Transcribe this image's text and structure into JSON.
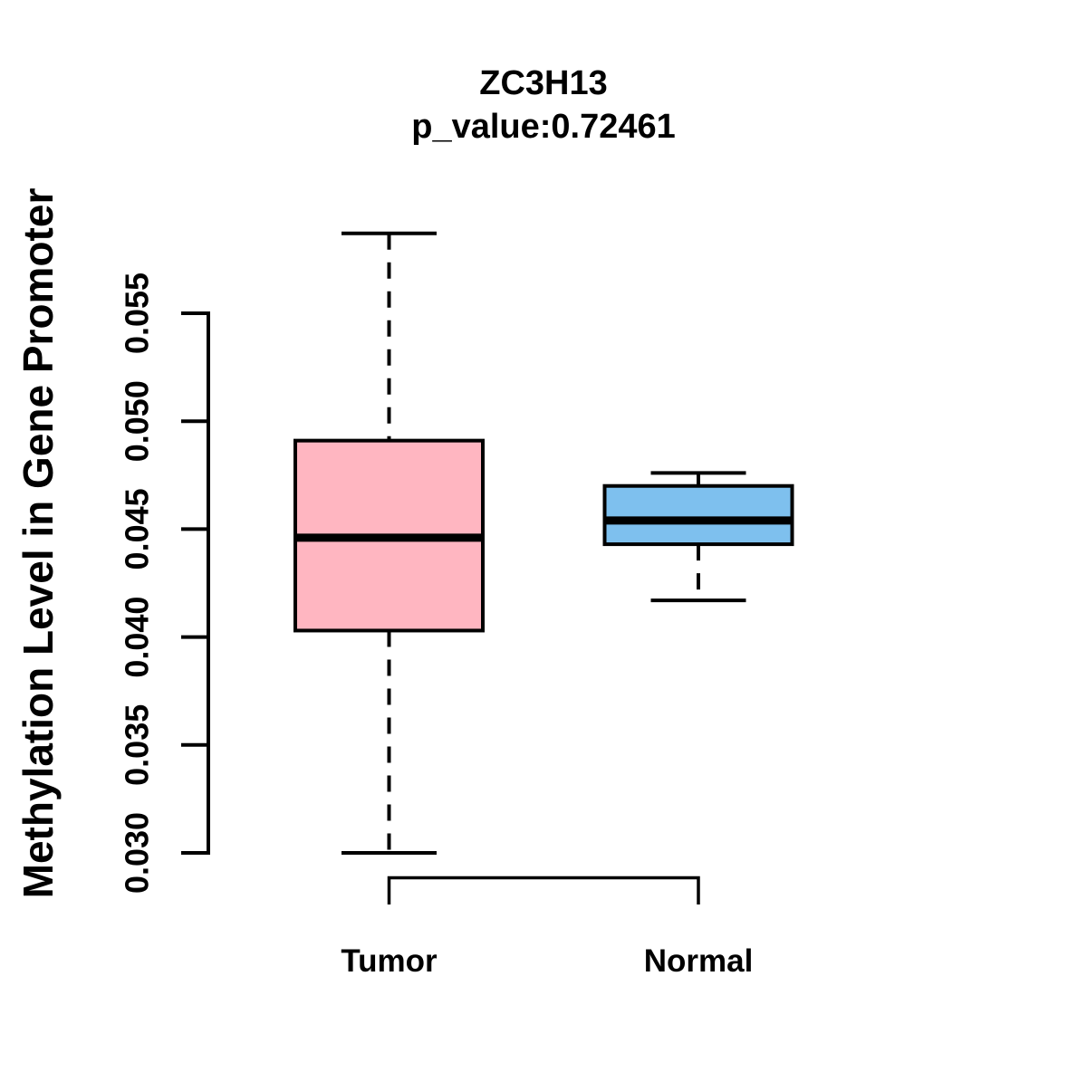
{
  "chart_data": {
    "type": "boxplot",
    "title": "ZC3H13",
    "subtitle": "p_value:0.72461",
    "p_value": 0.72461,
    "ylabel": "Methylation Level in Gene Promoter",
    "xlabel": "",
    "categories": [
      "Tumor",
      "Normal"
    ],
    "ytick_labels": [
      "0.030",
      "0.035",
      "0.040",
      "0.045",
      "0.050",
      "0.055"
    ],
    "ylim": [
      0.03,
      0.055
    ],
    "grid": false,
    "legend": null,
    "stroke_color": "#000000",
    "background_color": "#FFFFFF",
    "series": [
      {
        "name": "Tumor",
        "fill": "#FFB6C1",
        "whisker_low": 0.03,
        "q1": 0.0403,
        "median": 0.0446,
        "q3": 0.0491,
        "whisker_high": 0.0587
      },
      {
        "name": "Normal",
        "fill": "#7EC0EE",
        "whisker_low": 0.0417,
        "q1": 0.0443,
        "median": 0.0454,
        "q3": 0.047,
        "whisker_high": 0.0476
      }
    ]
  }
}
